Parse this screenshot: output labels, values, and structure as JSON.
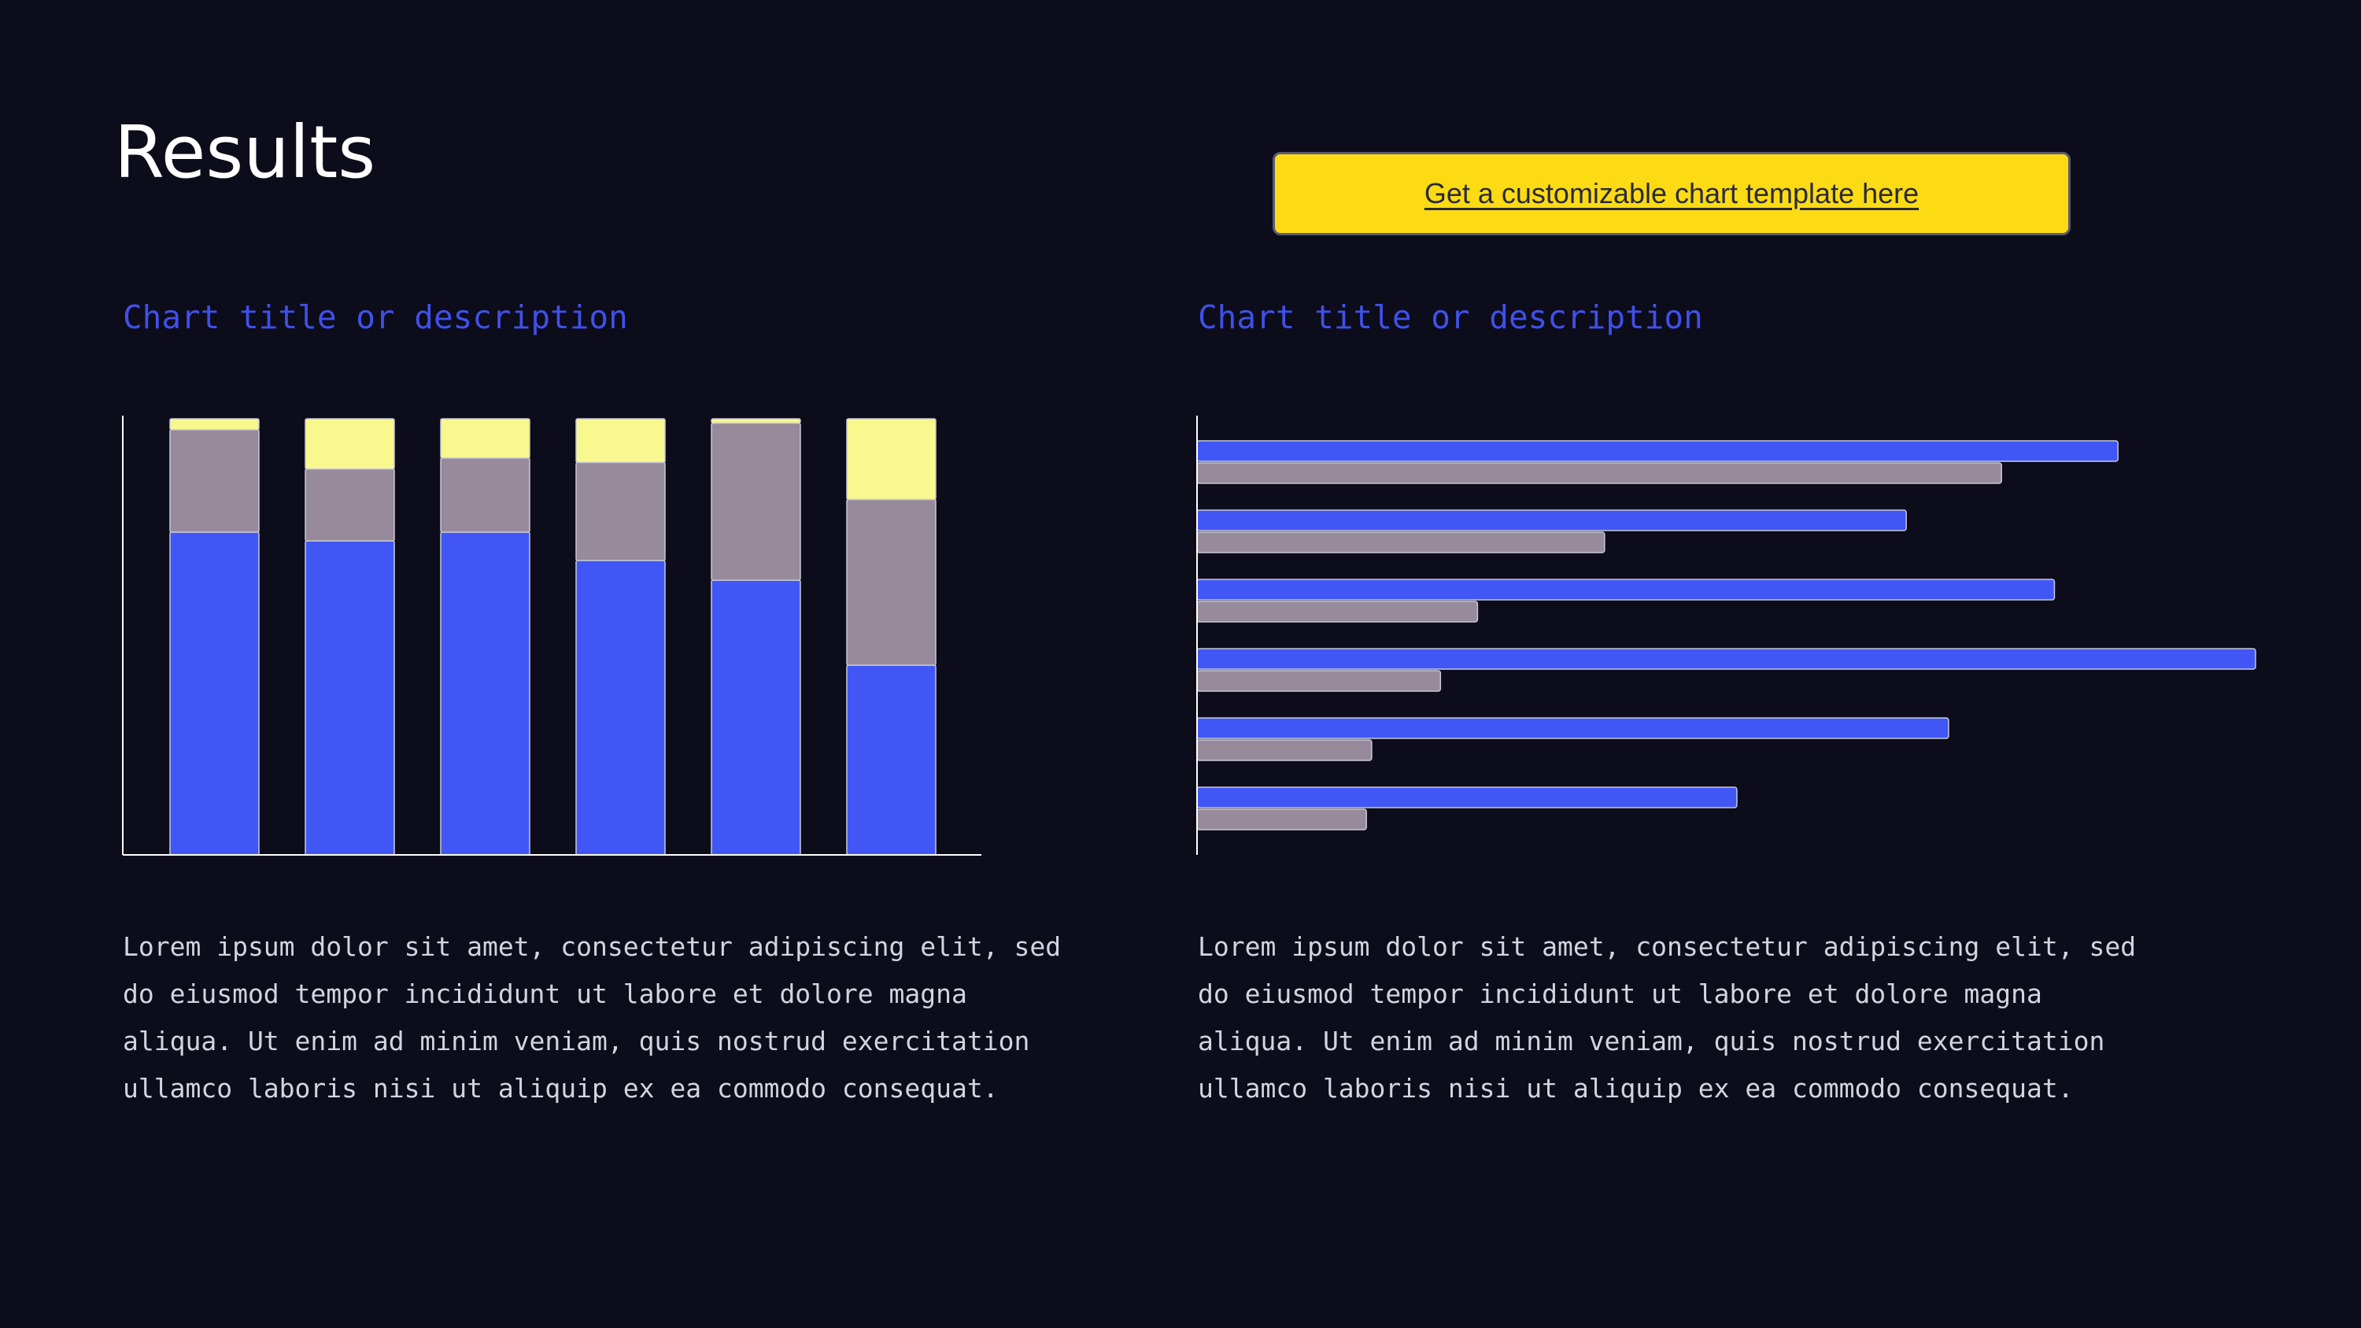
{
  "page": {
    "title": "Results",
    "cta_label": "Get a customizable chart template here"
  },
  "colors": {
    "background": "#0c0c1b",
    "blue": "#4157f5",
    "gray": "#978b9b",
    "yellow": "#f8f88f",
    "cta": "#fcdb14",
    "chart_title": "#4050e8"
  },
  "chart_data": [
    {
      "type": "bar",
      "orientation": "vertical",
      "stacked": true,
      "title": "Chart title or description",
      "categories": [
        "",
        "",
        "",
        "",
        "",
        ""
      ],
      "series": [
        {
          "values": [
            74,
            72,
            74,
            67.5,
            63,
            43.5
          ],
          "color": "#4157f5"
        },
        {
          "values": [
            23.5,
            16.5,
            17,
            22.5,
            36,
            38
          ],
          "color": "#978b9b"
        },
        {
          "values": [
            2.5,
            11.5,
            9,
            10,
            1,
            18.5
          ],
          "color": "#f8f88f"
        }
      ],
      "ylim": [
        0,
        100
      ],
      "grid": false,
      "axis_ticks": false,
      "description": "Lorem ipsum dolor sit amet, consectetur adipiscing elit, sed do eiusmod tempor incididunt ut labore et dolore magna aliqua. Ut enim ad minim veniam, quis nostrud exercitation ullamco laboris nisi ut aliquip ex ea commodo consequat."
    },
    {
      "type": "bar",
      "orientation": "horizontal",
      "stacked": false,
      "title": "Chart title or description",
      "categories": [
        "",
        "",
        "",
        "",
        "",
        ""
      ],
      "series": [
        {
          "values": [
            87,
            67,
            81,
            100,
            71,
            51
          ],
          "color": "#4157f5"
        },
        {
          "values": [
            76,
            38.5,
            26.5,
            23,
            16.5,
            16
          ],
          "color": "#978b9b"
        }
      ],
      "xlim": [
        0,
        100
      ],
      "grid": false,
      "axis_ticks": false,
      "description": "Lorem ipsum dolor sit amet, consectetur adipiscing elit, sed do eiusmod tempor incididunt ut labore et dolore magna aliqua. Ut enim ad minim veniam, quis nostrud exercitation ullamco laboris nisi ut aliquip ex ea commodo consequat."
    }
  ]
}
